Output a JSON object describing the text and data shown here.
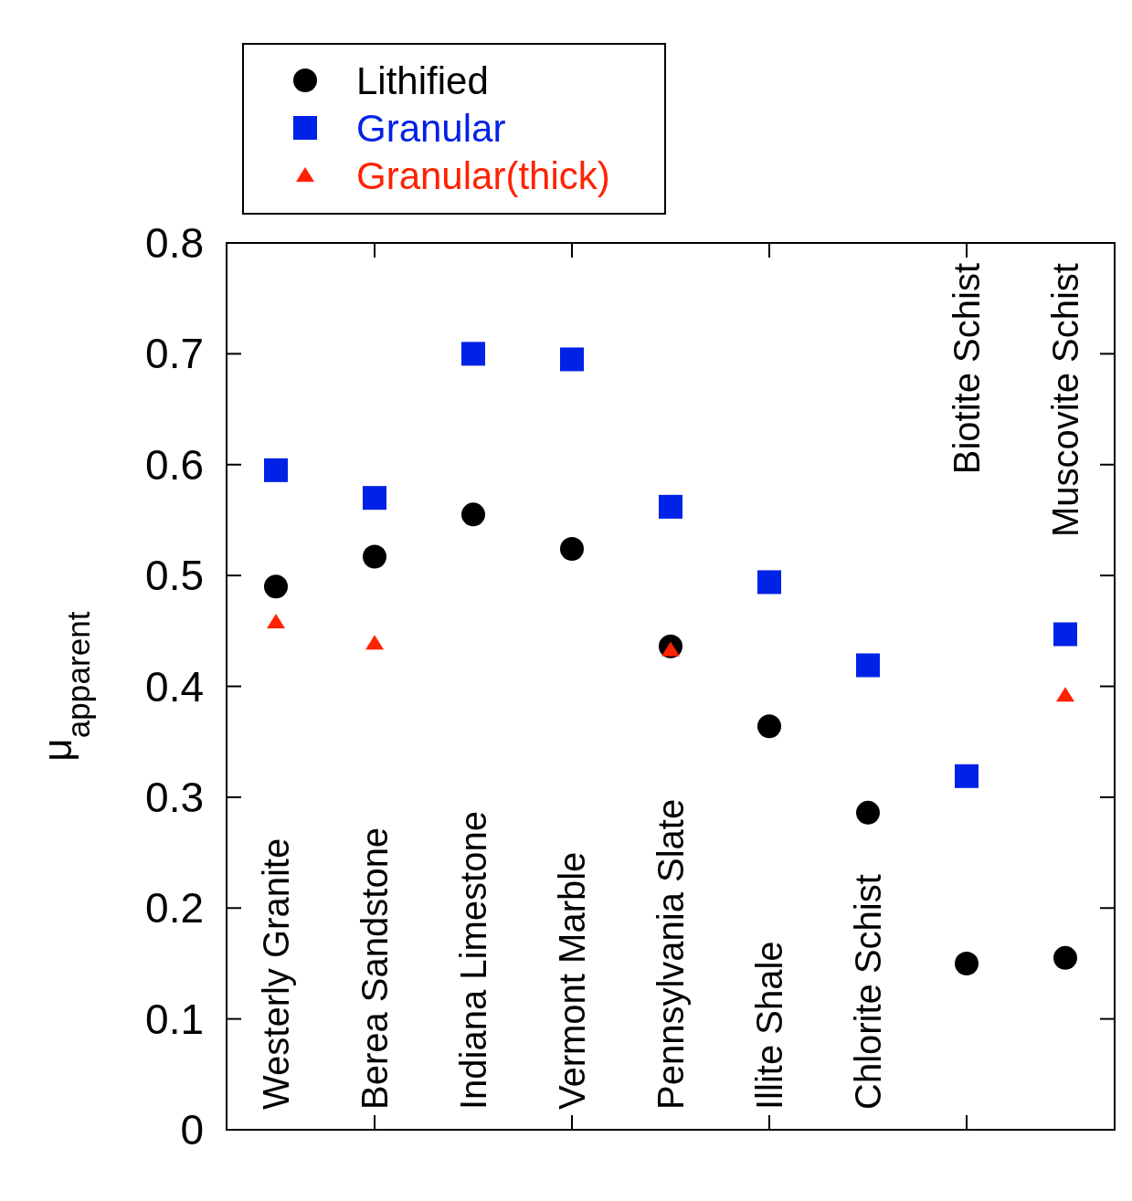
{
  "chart_data": {
    "type": "scatter",
    "ylabel": "μ$_{apparent}$",
    "categories": [
      "Westerly Granite",
      "Berea Sandstone",
      "Indiana Limestone",
      "Vermont Marble",
      "Pennsylvania Slate",
      "Illite Shale",
      "Chlorite Schist",
      "Biotite Schist",
      "Muscovite Schist"
    ],
    "series": [
      {
        "name": "Lithified",
        "color": "#000000",
        "marker": "circle",
        "values": [
          0.49,
          0.517,
          0.555,
          0.524,
          0.436,
          0.364,
          0.286,
          0.15,
          0.155
        ]
      },
      {
        "name": "Granular",
        "color": "#0022e6",
        "marker": "square",
        "values": [
          0.595,
          0.57,
          0.7,
          0.695,
          0.562,
          0.494,
          0.419,
          0.319,
          0.447
        ]
      },
      {
        "name": "Granular(thick)",
        "color": "#ff2200",
        "marker": "triangle",
        "values": [
          0.458,
          0.439,
          null,
          null,
          0.433,
          null,
          null,
          null,
          0.392
        ]
      }
    ],
    "ylim": [
      0,
      0.8
    ],
    "yticks": [
      0,
      0.1,
      0.2,
      0.3,
      0.4,
      0.5,
      0.6,
      0.7,
      0.8
    ],
    "grid": false,
    "legend": "top left"
  }
}
